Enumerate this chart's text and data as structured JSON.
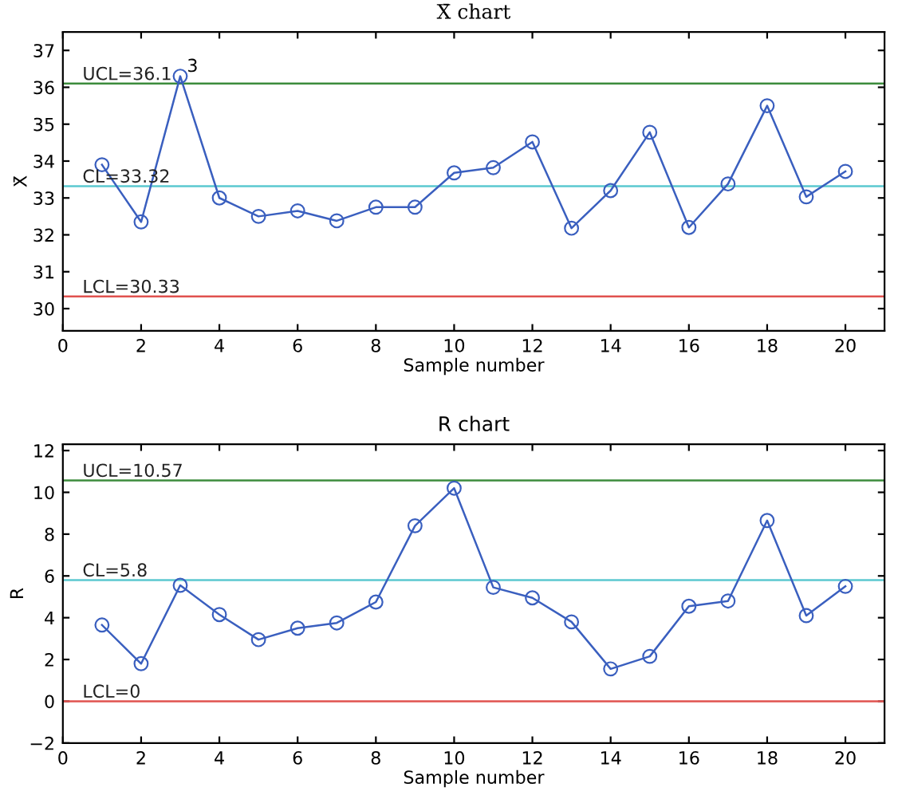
{
  "chart_data": [
    {
      "type": "line",
      "title": "X̄ chart",
      "xlabel": "Sample number",
      "ylabel": "X̄",
      "x": [
        1,
        2,
        3,
        4,
        5,
        6,
        7,
        8,
        9,
        10,
        11,
        12,
        13,
        14,
        15,
        16,
        17,
        18,
        19,
        20
      ],
      "series": [
        {
          "color": "#3a5fbf",
          "values": [
            33.9,
            32.35,
            36.3,
            33.0,
            32.5,
            32.65,
            32.38,
            32.75,
            32.75,
            33.68,
            33.82,
            34.52,
            32.18,
            33.2,
            34.78,
            32.2,
            33.38,
            35.5,
            33.03,
            33.72
          ]
        }
      ],
      "marker": "circle",
      "line_style": "solid",
      "grid": false,
      "legend": false,
      "xlim": [
        0,
        21
      ],
      "xticks": [
        0,
        2,
        4,
        6,
        8,
        10,
        12,
        14,
        16,
        18,
        20
      ],
      "ylim": [
        29.4,
        37.5
      ],
      "yticks": [
        30,
        31,
        32,
        33,
        34,
        35,
        36,
        37
      ],
      "ref_lines": [
        {
          "axis": "y",
          "value": 36.1,
          "label": "UCL=36.1",
          "color": "#3c8c3c"
        },
        {
          "axis": "y",
          "value": 33.32,
          "label": "CL=33.32",
          "color": "#5bc8d0"
        },
        {
          "axis": "y",
          "value": 30.33,
          "label": "LCL=30.33",
          "color": "#e0524f"
        }
      ],
      "annotations": [
        {
          "text": "3",
          "x": 3,
          "y": 36.3
        }
      ]
    },
    {
      "type": "line",
      "title": "R chart",
      "xlabel": "Sample number",
      "ylabel": "R",
      "x": [
        1,
        2,
        3,
        4,
        5,
        6,
        7,
        8,
        9,
        10,
        11,
        12,
        13,
        14,
        15,
        16,
        17,
        18,
        19,
        20
      ],
      "series": [
        {
          "color": "#3a5fbf",
          "values": [
            3.65,
            1.8,
            5.55,
            4.15,
            2.95,
            3.5,
            3.75,
            4.75,
            8.4,
            10.2,
            5.45,
            4.95,
            3.8,
            1.55,
            2.15,
            4.55,
            4.8,
            8.65,
            4.1,
            5.5
          ]
        }
      ],
      "marker": "circle",
      "line_style": "solid",
      "grid": false,
      "legend": false,
      "xlim": [
        0,
        21
      ],
      "xticks": [
        0,
        2,
        4,
        6,
        8,
        10,
        12,
        14,
        16,
        18,
        20
      ],
      "ylim": [
        -2,
        12.3
      ],
      "yticks": [
        {
          "value": -2,
          "label": "−2"
        },
        0,
        2,
        4,
        6,
        8,
        10,
        12
      ],
      "ref_lines": [
        {
          "axis": "y",
          "value": 10.57,
          "label": "UCL=10.57",
          "color": "#3c8c3c"
        },
        {
          "axis": "y",
          "value": 5.8,
          "label": "CL=5.8",
          "color": "#5bc8d0"
        },
        {
          "axis": "y",
          "value": 0,
          "label": "LCL=0",
          "color": "#e0524f"
        }
      ]
    }
  ]
}
